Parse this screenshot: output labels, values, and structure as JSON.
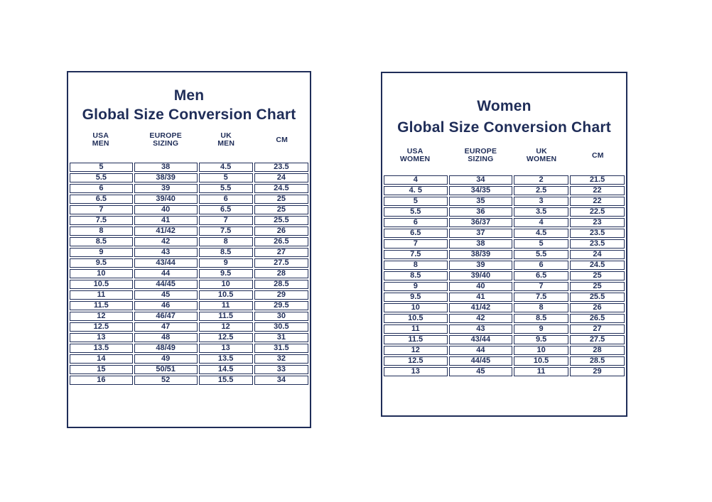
{
  "colors": {
    "ink": "#1f2d58",
    "background": "#ffffff"
  },
  "chart_data": [
    {
      "type": "table",
      "title_line1": "Men",
      "title_line2": "Global Size Conversion Chart",
      "columns": [
        [
          "USA",
          "MEN"
        ],
        [
          "EUROPE",
          "SIZING"
        ],
        [
          "UK",
          "MEN"
        ],
        [
          "CM"
        ]
      ],
      "rows": [
        [
          "5",
          "38",
          "4.5",
          "23.5"
        ],
        [
          "5.5",
          "38/39",
          "5",
          "24"
        ],
        [
          "6",
          "39",
          "5.5",
          "24.5"
        ],
        [
          "6.5",
          "39/40",
          "6",
          "25"
        ],
        [
          "7",
          "40",
          "6.5",
          "25"
        ],
        [
          "7.5",
          "41",
          "7",
          "25.5"
        ],
        [
          "8",
          "41/42",
          "7.5",
          "26"
        ],
        [
          "8.5",
          "42",
          "8",
          "26.5"
        ],
        [
          "9",
          "43",
          "8.5",
          "27"
        ],
        [
          "9.5",
          "43/44",
          "9",
          "27.5"
        ],
        [
          "10",
          "44",
          "9.5",
          "28"
        ],
        [
          "10.5",
          "44/45",
          "10",
          "28.5"
        ],
        [
          "11",
          "45",
          "10.5",
          "29"
        ],
        [
          "11.5",
          "46",
          "11",
          "29.5"
        ],
        [
          "12",
          "46/47",
          "11.5",
          "30"
        ],
        [
          "12.5",
          "47",
          "12",
          "30.5"
        ],
        [
          "13",
          "48",
          "12.5",
          "31"
        ],
        [
          "13.5",
          "48/49",
          "13",
          "31.5"
        ],
        [
          "14",
          "49",
          "13.5",
          "32"
        ],
        [
          "15",
          "50/51",
          "14.5",
          "33"
        ],
        [
          "16",
          "52",
          "15.5",
          "34"
        ]
      ]
    },
    {
      "type": "table",
      "title_line1": "Women",
      "title_line2": "Global Size Conversion Chart",
      "columns": [
        [
          "USA",
          "WOMEN"
        ],
        [
          "EUROPE",
          "SIZING"
        ],
        [
          "UK",
          "WOMEN"
        ],
        [
          "CM"
        ]
      ],
      "rows": [
        [
          "4",
          "34",
          "2",
          "21.5"
        ],
        [
          "4. 5",
          "34/35",
          "2.5",
          "22"
        ],
        [
          "5",
          "35",
          "3",
          "22"
        ],
        [
          "5.5",
          "36",
          "3.5",
          "22.5"
        ],
        [
          "6",
          "36/37",
          "4",
          "23"
        ],
        [
          "6.5",
          "37",
          "4.5",
          "23.5"
        ],
        [
          "7",
          "38",
          "5",
          "23.5"
        ],
        [
          "7.5",
          "38/39",
          "5.5",
          "24"
        ],
        [
          "8",
          "39",
          "6",
          "24.5"
        ],
        [
          "8.5",
          "39/40",
          "6.5",
          "25"
        ],
        [
          "9",
          "40",
          "7",
          "25"
        ],
        [
          "9.5",
          "41",
          "7.5",
          "25.5"
        ],
        [
          "10",
          "41/42",
          "8",
          "26"
        ],
        [
          "10.5",
          "42",
          "8.5",
          "26.5"
        ],
        [
          "11",
          "43",
          "9",
          "27"
        ],
        [
          "11.5",
          "43/44",
          "9.5",
          "27.5"
        ],
        [
          "12",
          "44",
          "10",
          "28"
        ],
        [
          "12.5",
          "44/45",
          "10.5",
          "28.5"
        ],
        [
          "13",
          "45",
          "11",
          "29"
        ]
      ]
    }
  ]
}
